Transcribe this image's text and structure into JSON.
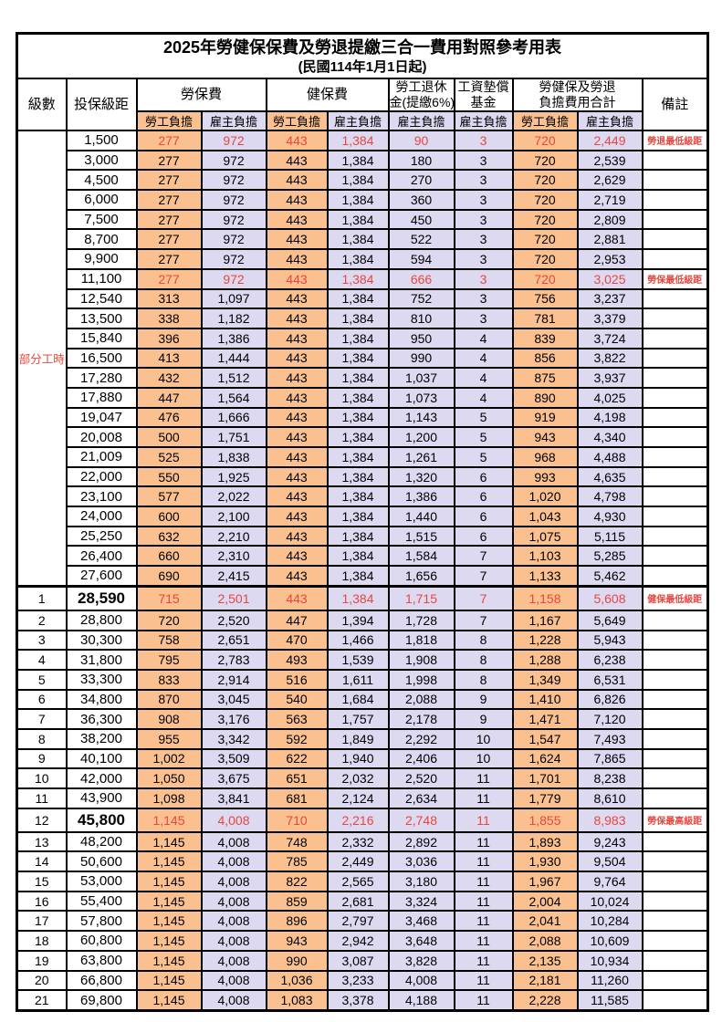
{
  "title": "2025年勞健保保費及勞退提繳三合一費用對照參考用表",
  "subtitle": "(民國114年1月1日起)",
  "colors": {
    "employee_bg": "#FAC090",
    "employer_bg": "#DCD9F0",
    "highlight_red": "#E8473F",
    "border": "#000000"
  },
  "header": {
    "level": "級數",
    "bracket": "投保級距",
    "labor": "勞保費",
    "health": "健保費",
    "pension_line1": "勞工退休",
    "pension_line2": "金(提繳6%)",
    "fund_line1": "工資墊償",
    "fund_line2": "基金",
    "total_line1": "勞健保及勞退",
    "total_line2": "負擔費用合計",
    "remark": "備註",
    "employee": "勞工負擔",
    "employer": "雇主負擔"
  },
  "part_time_label": "部分工時",
  "part_time_row_count": 23,
  "rows": [
    {
      "level": "",
      "bracket": "1,500",
      "labor_employee": "277",
      "labor_employer": "972",
      "health_employee": "443",
      "health_employer": "1,384",
      "pension_employer": "90",
      "wage_fund_employer": "3",
      "total_employee": "720",
      "total_employer": "2,449",
      "remark": "勞退最低級距",
      "red": true,
      "bold": false
    },
    {
      "level": "",
      "bracket": "3,000",
      "labor_employee": "277",
      "labor_employer": "972",
      "health_employee": "443",
      "health_employer": "1,384",
      "pension_employer": "180",
      "wage_fund_employer": "3",
      "total_employee": "720",
      "total_employer": "2,539",
      "remark": "",
      "red": false,
      "bold": false
    },
    {
      "level": "",
      "bracket": "4,500",
      "labor_employee": "277",
      "labor_employer": "972",
      "health_employee": "443",
      "health_employer": "1,384",
      "pension_employer": "270",
      "wage_fund_employer": "3",
      "total_employee": "720",
      "total_employer": "2,629",
      "remark": "",
      "red": false,
      "bold": false
    },
    {
      "level": "",
      "bracket": "6,000",
      "labor_employee": "277",
      "labor_employer": "972",
      "health_employee": "443",
      "health_employer": "1,384",
      "pension_employer": "360",
      "wage_fund_employer": "3",
      "total_employee": "720",
      "total_employer": "2,719",
      "remark": "",
      "red": false,
      "bold": false
    },
    {
      "level": "",
      "bracket": "7,500",
      "labor_employee": "277",
      "labor_employer": "972",
      "health_employee": "443",
      "health_employer": "1,384",
      "pension_employer": "450",
      "wage_fund_employer": "3",
      "total_employee": "720",
      "total_employer": "2,809",
      "remark": "",
      "red": false,
      "bold": false
    },
    {
      "level": "",
      "bracket": "8,700",
      "labor_employee": "277",
      "labor_employer": "972",
      "health_employee": "443",
      "health_employer": "1,384",
      "pension_employer": "522",
      "wage_fund_employer": "3",
      "total_employee": "720",
      "total_employer": "2,881",
      "remark": "",
      "red": false,
      "bold": false
    },
    {
      "level": "",
      "bracket": "9,900",
      "labor_employee": "277",
      "labor_employer": "972",
      "health_employee": "443",
      "health_employer": "1,384",
      "pension_employer": "594",
      "wage_fund_employer": "3",
      "total_employee": "720",
      "total_employer": "2,953",
      "remark": "",
      "red": false,
      "bold": false
    },
    {
      "level": "",
      "bracket": "11,100",
      "labor_employee": "277",
      "labor_employer": "972",
      "health_employee": "443",
      "health_employer": "1,384",
      "pension_employer": "666",
      "wage_fund_employer": "3",
      "total_employee": "720",
      "total_employer": "3,025",
      "remark": "勞保最低級距",
      "red": true,
      "bold": false
    },
    {
      "level": "",
      "bracket": "12,540",
      "labor_employee": "313",
      "labor_employer": "1,097",
      "health_employee": "443",
      "health_employer": "1,384",
      "pension_employer": "752",
      "wage_fund_employer": "3",
      "total_employee": "756",
      "total_employer": "3,237",
      "remark": "",
      "red": false,
      "bold": false
    },
    {
      "level": "",
      "bracket": "13,500",
      "labor_employee": "338",
      "labor_employer": "1,182",
      "health_employee": "443",
      "health_employer": "1,384",
      "pension_employer": "810",
      "wage_fund_employer": "3",
      "total_employee": "781",
      "total_employer": "3,379",
      "remark": "",
      "red": false,
      "bold": false
    },
    {
      "level": "",
      "bracket": "15,840",
      "labor_employee": "396",
      "labor_employer": "1,386",
      "health_employee": "443",
      "health_employer": "1,384",
      "pension_employer": "950",
      "wage_fund_employer": "4",
      "total_employee": "839",
      "total_employer": "3,724",
      "remark": "",
      "red": false,
      "bold": false
    },
    {
      "level": "",
      "bracket": "16,500",
      "labor_employee": "413",
      "labor_employer": "1,444",
      "health_employee": "443",
      "health_employer": "1,384",
      "pension_employer": "990",
      "wage_fund_employer": "4",
      "total_employee": "856",
      "total_employer": "3,822",
      "remark": "",
      "red": false,
      "bold": false
    },
    {
      "level": "",
      "bracket": "17,280",
      "labor_employee": "432",
      "labor_employer": "1,512",
      "health_employee": "443",
      "health_employer": "1,384",
      "pension_employer": "1,037",
      "wage_fund_employer": "4",
      "total_employee": "875",
      "total_employer": "3,937",
      "remark": "",
      "red": false,
      "bold": false
    },
    {
      "level": "",
      "bracket": "17,880",
      "labor_employee": "447",
      "labor_employer": "1,564",
      "health_employee": "443",
      "health_employer": "1,384",
      "pension_employer": "1,073",
      "wage_fund_employer": "4",
      "total_employee": "890",
      "total_employer": "4,025",
      "remark": "",
      "red": false,
      "bold": false
    },
    {
      "level": "",
      "bracket": "19,047",
      "labor_employee": "476",
      "labor_employer": "1,666",
      "health_employee": "443",
      "health_employer": "1,384",
      "pension_employer": "1,143",
      "wage_fund_employer": "5",
      "total_employee": "919",
      "total_employer": "4,198",
      "remark": "",
      "red": false,
      "bold": false
    },
    {
      "level": "",
      "bracket": "20,008",
      "labor_employee": "500",
      "labor_employer": "1,751",
      "health_employee": "443",
      "health_employer": "1,384",
      "pension_employer": "1,200",
      "wage_fund_employer": "5",
      "total_employee": "943",
      "total_employer": "4,340",
      "remark": "",
      "red": false,
      "bold": false
    },
    {
      "level": "",
      "bracket": "21,009",
      "labor_employee": "525",
      "labor_employer": "1,838",
      "health_employee": "443",
      "health_employer": "1,384",
      "pension_employer": "1,261",
      "wage_fund_employer": "5",
      "total_employee": "968",
      "total_employer": "4,488",
      "remark": "",
      "red": false,
      "bold": false
    },
    {
      "level": "",
      "bracket": "22,000",
      "labor_employee": "550",
      "labor_employer": "1,925",
      "health_employee": "443",
      "health_employer": "1,384",
      "pension_employer": "1,320",
      "wage_fund_employer": "6",
      "total_employee": "993",
      "total_employer": "4,635",
      "remark": "",
      "red": false,
      "bold": false
    },
    {
      "level": "",
      "bracket": "23,100",
      "labor_employee": "577",
      "labor_employer": "2,022",
      "health_employee": "443",
      "health_employer": "1,384",
      "pension_employer": "1,386",
      "wage_fund_employer": "6",
      "total_employee": "1,020",
      "total_employer": "4,798",
      "remark": "",
      "red": false,
      "bold": false
    },
    {
      "level": "",
      "bracket": "24,000",
      "labor_employee": "600",
      "labor_employer": "2,100",
      "health_employee": "443",
      "health_employer": "1,384",
      "pension_employer": "1,440",
      "wage_fund_employer": "6",
      "total_employee": "1,043",
      "total_employer": "4,930",
      "remark": "",
      "red": false,
      "bold": false
    },
    {
      "level": "",
      "bracket": "25,250",
      "labor_employee": "632",
      "labor_employer": "2,210",
      "health_employee": "443",
      "health_employer": "1,384",
      "pension_employer": "1,515",
      "wage_fund_employer": "6",
      "total_employee": "1,075",
      "total_employer": "5,115",
      "remark": "",
      "red": false,
      "bold": false
    },
    {
      "level": "",
      "bracket": "26,400",
      "labor_employee": "660",
      "labor_employer": "2,310",
      "health_employee": "443",
      "health_employer": "1,384",
      "pension_employer": "1,584",
      "wage_fund_employer": "7",
      "total_employee": "1,103",
      "total_employer": "5,285",
      "remark": "",
      "red": false,
      "bold": false
    },
    {
      "level": "",
      "bracket": "27,600",
      "labor_employee": "690",
      "labor_employer": "2,415",
      "health_employee": "443",
      "health_employer": "1,384",
      "pension_employer": "1,656",
      "wage_fund_employer": "7",
      "total_employee": "1,133",
      "total_employer": "5,462",
      "remark": "",
      "red": false,
      "bold": false
    },
    {
      "level": "1",
      "bracket": "28,590",
      "labor_employee": "715",
      "labor_employer": "2,501",
      "health_employee": "443",
      "health_employer": "1,384",
      "pension_employer": "1,715",
      "wage_fund_employer": "7",
      "total_employee": "1,158",
      "total_employer": "5,608",
      "remark": "健保最低級距",
      "red": true,
      "bold": true
    },
    {
      "level": "2",
      "bracket": "28,800",
      "labor_employee": "720",
      "labor_employer": "2,520",
      "health_employee": "447",
      "health_employer": "1,394",
      "pension_employer": "1,728",
      "wage_fund_employer": "7",
      "total_employee": "1,167",
      "total_employer": "5,649",
      "remark": "",
      "red": false,
      "bold": false
    },
    {
      "level": "3",
      "bracket": "30,300",
      "labor_employee": "758",
      "labor_employer": "2,651",
      "health_employee": "470",
      "health_employer": "1,466",
      "pension_employer": "1,818",
      "wage_fund_employer": "8",
      "total_employee": "1,228",
      "total_employer": "5,943",
      "remark": "",
      "red": false,
      "bold": false
    },
    {
      "level": "4",
      "bracket": "31,800",
      "labor_employee": "795",
      "labor_employer": "2,783",
      "health_employee": "493",
      "health_employer": "1,539",
      "pension_employer": "1,908",
      "wage_fund_employer": "8",
      "total_employee": "1,288",
      "total_employer": "6,238",
      "remark": "",
      "red": false,
      "bold": false
    },
    {
      "level": "5",
      "bracket": "33,300",
      "labor_employee": "833",
      "labor_employer": "2,914",
      "health_employee": "516",
      "health_employer": "1,611",
      "pension_employer": "1,998",
      "wage_fund_employer": "8",
      "total_employee": "1,349",
      "total_employer": "6,531",
      "remark": "",
      "red": false,
      "bold": false
    },
    {
      "level": "6",
      "bracket": "34,800",
      "labor_employee": "870",
      "labor_employer": "3,045",
      "health_employee": "540",
      "health_employer": "1,684",
      "pension_employer": "2,088",
      "wage_fund_employer": "9",
      "total_employee": "1,410",
      "total_employer": "6,826",
      "remark": "",
      "red": false,
      "bold": false
    },
    {
      "level": "7",
      "bracket": "36,300",
      "labor_employee": "908",
      "labor_employer": "3,176",
      "health_employee": "563",
      "health_employer": "1,757",
      "pension_employer": "2,178",
      "wage_fund_employer": "9",
      "total_employee": "1,471",
      "total_employer": "7,120",
      "remark": "",
      "red": false,
      "bold": false
    },
    {
      "level": "8",
      "bracket": "38,200",
      "labor_employee": "955",
      "labor_employer": "3,342",
      "health_employee": "592",
      "health_employer": "1,849",
      "pension_employer": "2,292",
      "wage_fund_employer": "10",
      "total_employee": "1,547",
      "total_employer": "7,493",
      "remark": "",
      "red": false,
      "bold": false
    },
    {
      "level": "9",
      "bracket": "40,100",
      "labor_employee": "1,002",
      "labor_employer": "3,509",
      "health_employee": "622",
      "health_employer": "1,940",
      "pension_employer": "2,406",
      "wage_fund_employer": "10",
      "total_employee": "1,624",
      "total_employer": "7,865",
      "remark": "",
      "red": false,
      "bold": false
    },
    {
      "level": "10",
      "bracket": "42,000",
      "labor_employee": "1,050",
      "labor_employer": "3,675",
      "health_employee": "651",
      "health_employer": "2,032",
      "pension_employer": "2,520",
      "wage_fund_employer": "11",
      "total_employee": "1,701",
      "total_employer": "8,238",
      "remark": "",
      "red": false,
      "bold": false
    },
    {
      "level": "11",
      "bracket": "43,900",
      "labor_employee": "1,098",
      "labor_employer": "3,841",
      "health_employee": "681",
      "health_employer": "2,124",
      "pension_employer": "2,634",
      "wage_fund_employer": "11",
      "total_employee": "1,779",
      "total_employer": "8,610",
      "remark": "",
      "red": false,
      "bold": false
    },
    {
      "level": "12",
      "bracket": "45,800",
      "labor_employee": "1,145",
      "labor_employer": "4,008",
      "health_employee": "710",
      "health_employer": "2,216",
      "pension_employer": "2,748",
      "wage_fund_employer": "11",
      "total_employee": "1,855",
      "total_employer": "8,983",
      "remark": "勞保最高級距",
      "red": true,
      "bold": true
    },
    {
      "level": "13",
      "bracket": "48,200",
      "labor_employee": "1,145",
      "labor_employer": "4,008",
      "health_employee": "748",
      "health_employer": "2,332",
      "pension_employer": "2,892",
      "wage_fund_employer": "11",
      "total_employee": "1,893",
      "total_employer": "9,243",
      "remark": "",
      "red": false,
      "bold": false
    },
    {
      "level": "14",
      "bracket": "50,600",
      "labor_employee": "1,145",
      "labor_employer": "4,008",
      "health_employee": "785",
      "health_employer": "2,449",
      "pension_employer": "3,036",
      "wage_fund_employer": "11",
      "total_employee": "1,930",
      "total_employer": "9,504",
      "remark": "",
      "red": false,
      "bold": false
    },
    {
      "level": "15",
      "bracket": "53,000",
      "labor_employee": "1,145",
      "labor_employer": "4,008",
      "health_employee": "822",
      "health_employer": "2,565",
      "pension_employer": "3,180",
      "wage_fund_employer": "11",
      "total_employee": "1,967",
      "total_employer": "9,764",
      "remark": "",
      "red": false,
      "bold": false
    },
    {
      "level": "16",
      "bracket": "55,400",
      "labor_employee": "1,145",
      "labor_employer": "4,008",
      "health_employee": "859",
      "health_employer": "2,681",
      "pension_employer": "3,324",
      "wage_fund_employer": "11",
      "total_employee": "2,004",
      "total_employer": "10,024",
      "remark": "",
      "red": false,
      "bold": false
    },
    {
      "level": "17",
      "bracket": "57,800",
      "labor_employee": "1,145",
      "labor_employer": "4,008",
      "health_employee": "896",
      "health_employer": "2,797",
      "pension_employer": "3,468",
      "wage_fund_employer": "11",
      "total_employee": "2,041",
      "total_employer": "10,284",
      "remark": "",
      "red": false,
      "bold": false
    },
    {
      "level": "18",
      "bracket": "60,800",
      "labor_employee": "1,145",
      "labor_employer": "4,008",
      "health_employee": "943",
      "health_employer": "2,942",
      "pension_employer": "3,648",
      "wage_fund_employer": "11",
      "total_employee": "2,088",
      "total_employer": "10,609",
      "remark": "",
      "red": false,
      "bold": false
    },
    {
      "level": "19",
      "bracket": "63,800",
      "labor_employee": "1,145",
      "labor_employer": "4,008",
      "health_employee": "990",
      "health_employer": "3,087",
      "pension_employer": "3,828",
      "wage_fund_employer": "11",
      "total_employee": "2,135",
      "total_employer": "10,934",
      "remark": "",
      "red": false,
      "bold": false
    },
    {
      "level": "20",
      "bracket": "66,800",
      "labor_employee": "1,145",
      "labor_employer": "4,008",
      "health_employee": "1,036",
      "health_employer": "3,233",
      "pension_employer": "4,008",
      "wage_fund_employer": "11",
      "total_employee": "2,181",
      "total_employer": "11,260",
      "remark": "",
      "red": false,
      "bold": false
    },
    {
      "level": "21",
      "bracket": "69,800",
      "labor_employee": "1,145",
      "labor_employer": "4,008",
      "health_employee": "1,083",
      "health_employer": "3,378",
      "pension_employer": "4,188",
      "wage_fund_employer": "11",
      "total_employee": "2,228",
      "total_employer": "11,585",
      "remark": "",
      "red": false,
      "bold": false
    }
  ]
}
